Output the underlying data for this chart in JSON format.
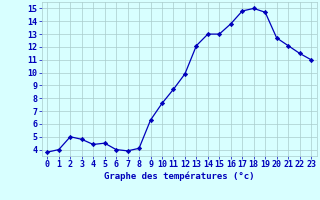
{
  "hours": [
    0,
    1,
    2,
    3,
    4,
    5,
    6,
    7,
    8,
    9,
    10,
    11,
    12,
    13,
    14,
    15,
    16,
    17,
    18,
    19,
    20,
    21,
    22,
    23
  ],
  "temps": [
    3.8,
    4.0,
    5.0,
    4.8,
    4.4,
    4.5,
    4.0,
    3.9,
    4.1,
    6.3,
    7.6,
    8.7,
    9.9,
    12.1,
    13.0,
    13.0,
    13.8,
    14.8,
    15.0,
    14.7,
    12.7,
    12.1,
    11.5,
    11.0
  ],
  "line_color": "#0000bb",
  "marker": "D",
  "marker_size": 2.2,
  "bg_color": "#d8ffff",
  "grid_color": "#aacccc",
  "xlabel": "Graphe des températures (°c)",
  "xlabel_color": "#0000bb",
  "xlabel_fontsize": 6.5,
  "tick_color": "#0000bb",
  "tick_fontsize": 6.0,
  "ylim": [
    3.5,
    15.5
  ],
  "yticks": [
    4,
    5,
    6,
    7,
    8,
    9,
    10,
    11,
    12,
    13,
    14,
    15
  ],
  "xlim": [
    -0.5,
    23.5
  ],
  "xticks": [
    0,
    1,
    2,
    3,
    4,
    5,
    6,
    7,
    8,
    9,
    10,
    11,
    12,
    13,
    14,
    15,
    16,
    17,
    18,
    19,
    20,
    21,
    22,
    23
  ],
  "xtick_labels": [
    "0",
    "1",
    "2",
    "3",
    "4",
    "5",
    "6",
    "7",
    "8",
    "9",
    "10",
    "11",
    "12",
    "13",
    "14",
    "15",
    "16",
    "17",
    "18",
    "19",
    "20",
    "21",
    "22",
    "23"
  ]
}
